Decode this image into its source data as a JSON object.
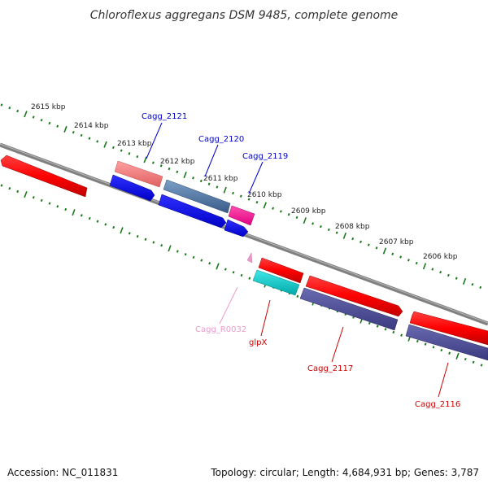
{
  "title": "Chloroflexus aggregans DSM 9485, complete genome",
  "footer": {
    "accession": "Accession: NC_011831",
    "topology": "Topology: circular; Length: 4,684,931 bp; Genes: 3,787"
  },
  "ruler": [
    {
      "label": "2615 kbp"
    },
    {
      "label": "2614 kbp"
    },
    {
      "label": "2613 kbp"
    },
    {
      "label": "2612 kbp"
    },
    {
      "label": "2611 kbp"
    },
    {
      "label": "2610 kbp"
    },
    {
      "label": "2609 kbp"
    },
    {
      "label": "2608 kbp"
    },
    {
      "label": "2607 kbp"
    },
    {
      "label": "2606 kbp"
    }
  ],
  "gene_labels": [
    {
      "name": "Cagg_2121",
      "color": "#0000cc"
    },
    {
      "name": "Cagg_2120",
      "color": "#0000cc"
    },
    {
      "name": "Cagg_2119",
      "color": "#0000cc"
    },
    {
      "name": "Cagg_R0032",
      "color": "#ee99cc"
    },
    {
      "name": "glpX",
      "color": "#cc0000"
    },
    {
      "name": "Cagg_2117",
      "color": "#cc0000"
    },
    {
      "name": "Cagg_2116",
      "color": "#cc0000"
    }
  ],
  "colors": {
    "backbone": "#808080",
    "ruler_ticks": "#1a7a1a",
    "forward_cds": "#ff0000",
    "forward_cds_light": "#f08080",
    "reverse_cds": "#0000ee",
    "reverse_cds_dark": "#4a4a90",
    "steel": "#5a7fa8",
    "magenta": "#ff1493",
    "cyan": "#00c8c8",
    "rna": "#ee99cc"
  }
}
